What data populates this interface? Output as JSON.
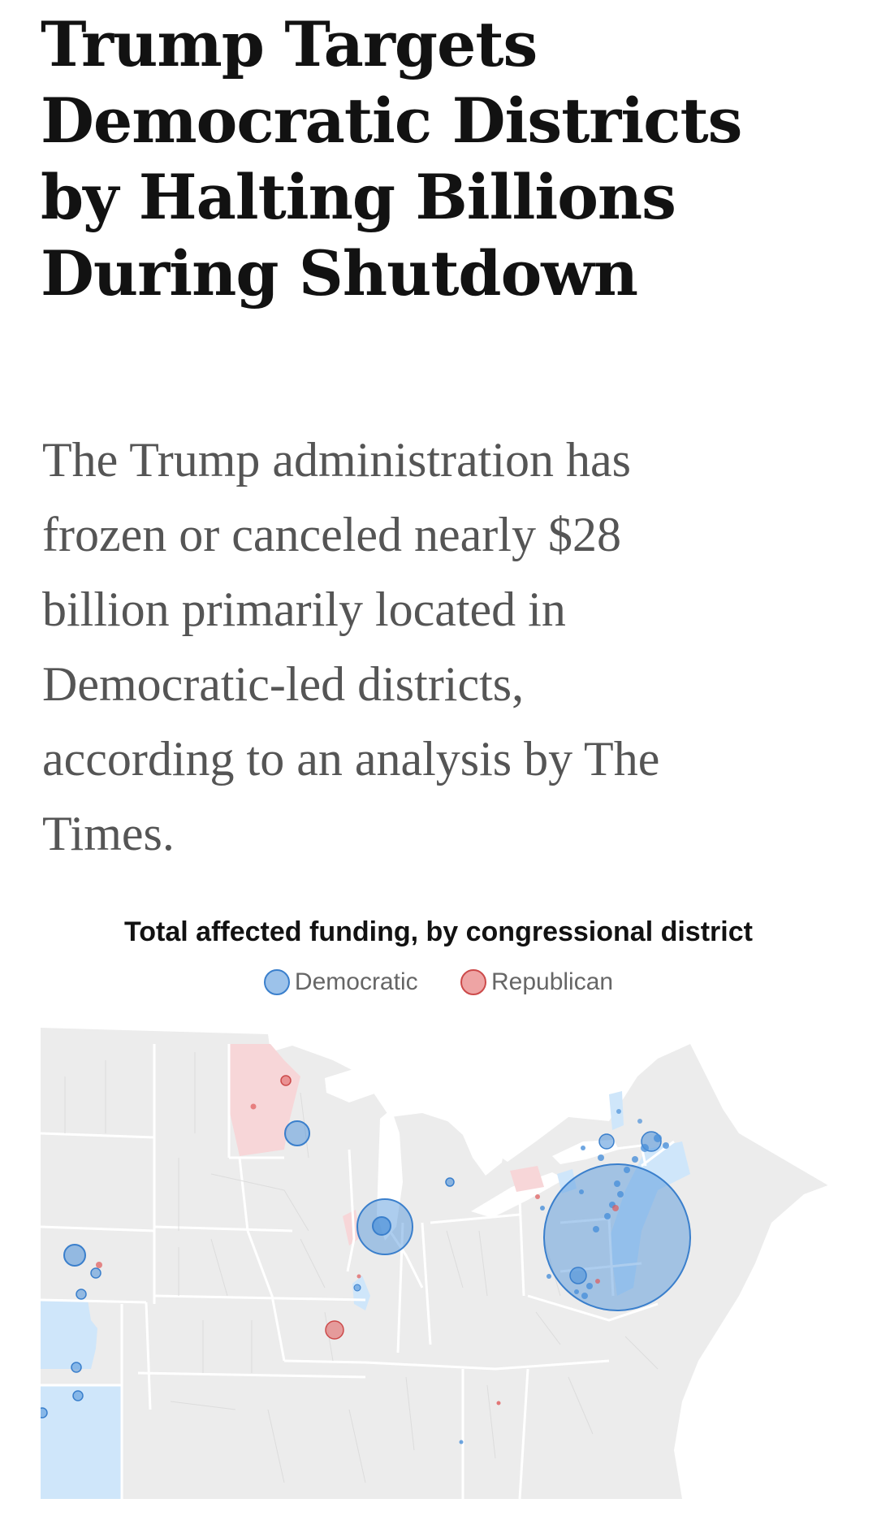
{
  "headline": {
    "lines": [
      "Trump Targets",
      "Democratic Districts",
      "by Halting Billions",
      "During Shutdown"
    ]
  },
  "dek": {
    "lines": [
      "The Trump administration has",
      "frozen or canceled nearly $28",
      "billion primarily located in",
      "Democratic-led districts,",
      "according to an analysis by The",
      "Times."
    ]
  },
  "map": {
    "title": "Total affected funding, by congressional district",
    "legend": [
      {
        "label": "Democratic",
        "color": "#4a90d9"
      },
      {
        "label": "Republican",
        "color": "#e05a5a"
      }
    ],
    "colors": {
      "democratic_fill": "#4a90d9",
      "republican_fill": "#e05a5a",
      "democratic_district": "#cfe6fa",
      "republican_district": "#f7d6d8",
      "land": "#ececec",
      "border": "#ffffff"
    }
  }
}
